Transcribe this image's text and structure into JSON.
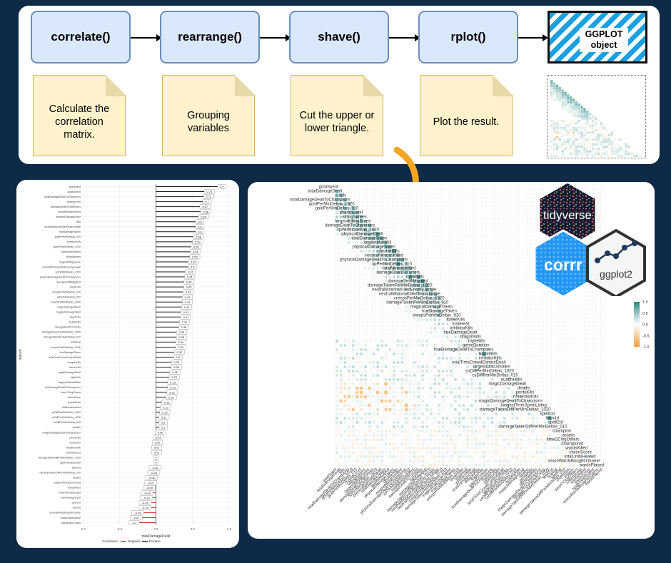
{
  "pipeline": {
    "steps": [
      {
        "label": "correlate()"
      },
      {
        "label": "rearrange()"
      },
      {
        "label": "shave()"
      },
      {
        "label": "rplot()"
      }
    ],
    "output_label": "GGPLOT object",
    "notes": [
      "Calculate the correlation matrix.",
      "Grouping variables",
      "Cut the upper or lower triangle.",
      "Plot the result."
    ]
  },
  "logos": {
    "tidyverse": "tidyverse",
    "corrr": "corrr",
    "ggplot2": "ggplot2"
  },
  "colors": {
    "background": "#0f2a47",
    "step_fill": "#dae8fc",
    "step_border": "#6c8ebf",
    "note_fill": "#fff2cc",
    "note_border": "#d6b656",
    "positive": "#2a8a82",
    "negative": "#f0a040",
    "arrow_orange": "#f5a623"
  },
  "chart_data": [
    {
      "type": "bar",
      "orientation": "horizontal",
      "title": "",
      "xlabel": "totalDamageDealt",
      "ylabel": "feature",
      "xlim": [
        -1.0,
        1.0
      ],
      "x_ticks": [
        "-1.0",
        "-0.5",
        "0.0",
        "0.5",
        "1.0"
      ],
      "legend": {
        "title": "Correlation",
        "entries": [
          "Negative",
          "Positive"
        ]
      },
      "categories": [
        "goldSpent",
        "goldEarned",
        "totalDamageDealtToChampions",
        "champLevel",
        "damageDealtToObjectives",
        "neutralMinionsKilled",
        "physicalDamageDealt",
        "kills",
        "neutralMinionsKilledTeamJungle",
        "totalDamageTaken",
        "goldPerMinDeltas_010",
        "inhibitorKills",
        "goldPerMinDeltas_1020",
        "totalMinionsKilled",
        "killingSprees",
        "largestKillingSpree",
        "neutralMinionsKilledEnemyJungle",
        "xpPerMinDeltas_1020",
        "physicalDamageDealtToChampions",
        "damageSelfMitigated",
        "turretKills",
        "creepsPerMinDeltas_010",
        "xpPerMinDeltas_010",
        "creepsPerMinDeltas_1020",
        "magicDamageTaken",
        "magicalDamageDealt",
        "towerKills",
        "doubleKills",
        "damageDealtToTurrets",
        "damageTakenPerMinDeltas_1020",
        "damageTakenPerMinDeltas_010",
        "totalHeal",
        "creepsPerMinDeltas_010b",
        "trueDamageTaken",
        "totalTimeCrowdControlDealt",
        "dragonKills",
        "baronKills",
        "magicDamageDealt",
        "tripleKills",
        "largestCriticalStrike",
        "trueDamageDealtToChampions",
        "timeCCingOthers",
        "visionScore",
        "quadraKills",
        "totalUnitsHealed",
        "xpDiffPerMinDeltas_1020",
        "csDiffPerMinDeltas_1020",
        "csDiffPerMinDeltas_010",
        "assists",
        "magicDamageDealtToChampions",
        "pentaKills",
        "champion",
        "firstBloodKill",
        "wardsPlaced",
        "damageTakenDiffPerMinDeltas_1020",
        "sightWardsBought",
        "spell1Id",
        "damageTakenDiffPerMinDeltas_010",
        "deaths",
        "longestTimeSpentLiving",
        "wardsKilled",
        "visionWardsBought",
        "trueDamageDealt",
        "spell2Id",
        "teamId",
        "visionWardsBoughtInGame",
        "totalUnitsHealed2",
        "wardsKilledTeam"
      ],
      "values": [
        0.9,
        0.73,
        0.72,
        0.7,
        0.67,
        0.68,
        0.65,
        0.6,
        0.6,
        0.6,
        0.58,
        0.57,
        0.55,
        0.54,
        0.53,
        0.51,
        0.5,
        0.47,
        0.46,
        0.45,
        0.45,
        0.44,
        0.43,
        0.43,
        0.42,
        0.41,
        0.41,
        0.39,
        0.38,
        0.35,
        0.35,
        0.34,
        0.34,
        0.32,
        0.3,
        0.28,
        0.28,
        0.26,
        0.25,
        0.23,
        0.23,
        0.22,
        0.21,
        0.15,
        0.13,
        0.12,
        0.11,
        0.1,
        0.1,
        0.06,
        0.03,
        0.02,
        0.01,
        0.01,
        0.0,
        0.0,
        -0.01,
        -0.03,
        -0.06,
        -0.07,
        -0.09,
        -0.12,
        -0.13,
        -0.15,
        -0.15,
        -0.25,
        -0.27,
        -0.3
      ],
      "value_labels": [
        "0.9",
        "0.73",
        "0.72",
        "0.7",
        "0.67",
        "0.68",
        "0.65",
        "0.6",
        "0.6",
        "0.6",
        "0.58",
        "0.57",
        "0.55",
        "0.54",
        "0.53",
        "0.51",
        "0.5",
        "0.47",
        "0.46",
        "0.45",
        "0.45",
        "0.44",
        "0.43",
        "0.43",
        "0.42",
        "0.41",
        "0.41",
        "0.39",
        "0.38",
        "0.35",
        "0.35",
        "0.34",
        "0.34",
        "0.32",
        "0.3",
        "0.28",
        "0.28",
        "0.26",
        "0.25",
        "0.23",
        "0.23",
        "0.22",
        "0.21",
        "0.15",
        "0.13",
        "0.12",
        "0.11",
        "0.1",
        "0.1",
        "0.06",
        "0.03",
        "0.02",
        "0.01",
        "0.01",
        "0",
        "0",
        "-0.01",
        "-0.03",
        "-0.06",
        "-0.07",
        "-0.09",
        "-0.12",
        "-0.13",
        "-0.15",
        "-0.15",
        "-0.25",
        "-0.27",
        "-0.3"
      ]
    },
    {
      "type": "heatmap",
      "title": "",
      "lower_triangle": true,
      "colorbar": {
        "ticks": [
          "1.0",
          "0.5",
          "0.0",
          "-0.5",
          "-1.0"
        ],
        "low": "#f0a040",
        "mid": "#ffffff",
        "high": "#2a8a82"
      },
      "row_labels": [
        "goldSpent",
        "totalDamageDealt",
        "kills",
        "totalDamageDealtToChampions",
        "goldPerMinDeltas_1020",
        "goldPerMinDeltas_010",
        "champLevel",
        "killingSprees",
        "largestKillingSpree",
        "damageDealtToObjectives",
        "xpPerMinDeltas_1020",
        "physicalDamageDealt",
        "totalDamageTaken",
        "largestMultiKill",
        "physicalDamageTaken",
        "doubleKills",
        "neutralMinionsKilled",
        "physicalDamageDealtToChampions",
        "xpPerMinDeltas_010",
        "totalMinionsKilled",
        "damageDealtToTurrets",
        "turretKills",
        "damageSelfMitigated",
        "damageTakenPerMinDeltas_1020",
        "neutralMinionsKilledEnemyJungle",
        "neutralMinionsKilledTeamJungle",
        "creepsPerMinDeltas_1020",
        "damageTakenPerMinDeltas_010",
        "magicalDamageTaken",
        "trueDamageTaken",
        "creepsPerMinDeltas_010",
        "towerKills",
        "totalHeal",
        "inhibitorKills",
        "trueDamageDealt",
        "dragonKills",
        "tripleKills",
        "gameDuration",
        "trueDamageDealtToChampions",
        "baronKills",
        "inhibitorKills",
        "totalTimeCrowdControlDealt",
        "largestCriticalStrike",
        "csDiffPerMinDeltas_1020",
        "csDiffPerMinDeltas_010",
        "quadraKills",
        "magicDamageDealt",
        "deaths",
        "pentaKills",
        "riftHeraldKills",
        "magicDamageDealtToChampions",
        "longestTimeSpentLiving",
        "damageTakenDiffPerMinDeltas_1020",
        "spell1Id",
        "teamId",
        "spell2Id",
        "damageTakenDiffPerMinDeltas_010",
        "champion",
        "assists",
        "timeCCingOthers",
        "championId",
        "wardsKilled",
        "visionScore",
        "totalUnitsHealed",
        "visionWardsBoughtInGame",
        "wardsPlaced"
      ]
    }
  ]
}
